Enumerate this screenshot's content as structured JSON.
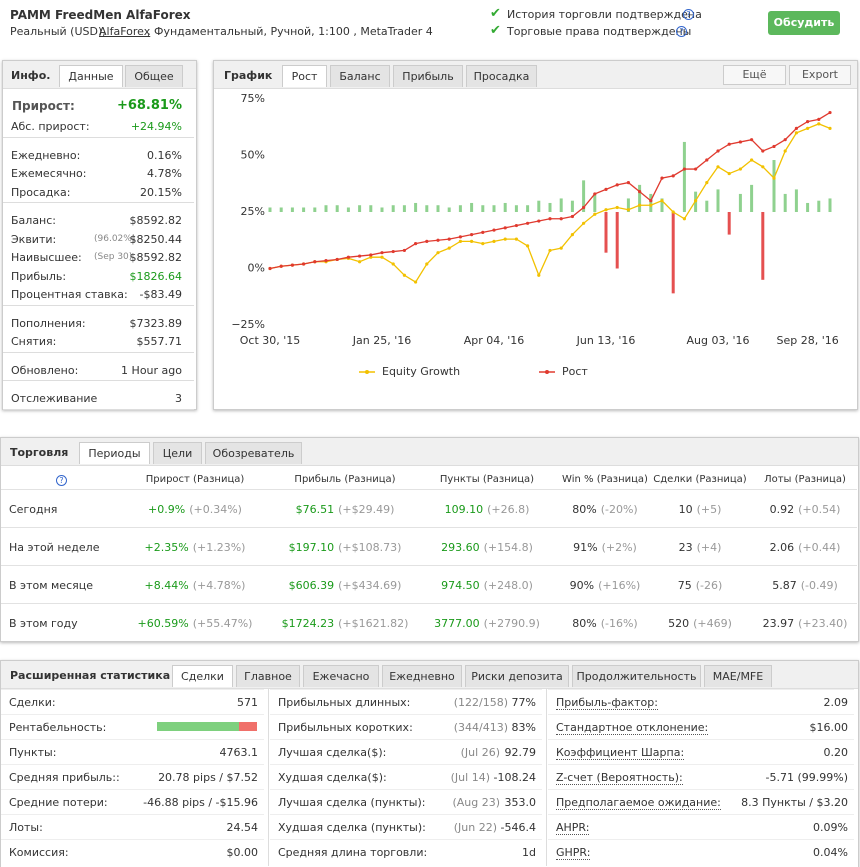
{
  "header": {
    "title": "PAMM FreedMen AlfaForex",
    "details_prefix": "Реальный (USD), ",
    "broker": "AlfaForex",
    "details_suffix": ", Фундаментальный, Ручной, 1:100 , MetaTrader 4",
    "verified": [
      "История торговли подтверждена",
      "Торговые права подтверждены"
    ],
    "button": "Обсудить"
  },
  "info": {
    "tabs": [
      "Инфо.",
      "Данные",
      "Общее"
    ],
    "gain_label": "Прирост:",
    "gain": "+68.81%",
    "groups": [
      [
        [
          "Абс. прирост:",
          "",
          "+24.94%"
        ]
      ],
      [
        [
          "Ежедневно:",
          "",
          "0.16%"
        ],
        [
          "Ежемесячно:",
          "",
          "4.78%"
        ],
        [
          "Просадка:",
          "",
          "20.15%"
        ]
      ],
      [
        [
          "Баланс:",
          "",
          "$8592.82"
        ],
        [
          "Эквити:",
          "(96.02%)",
          "$8250.44"
        ],
        [
          "Наивысшее:",
          "(Sep 30)",
          "$8592.82"
        ],
        [
          "Прибыль:",
          "",
          "$1826.64"
        ],
        [
          "Процентная ставка:",
          "",
          "-$83.49"
        ]
      ],
      [
        [
          "Пополнения:",
          "",
          "$7323.89"
        ],
        [
          "Снятия:",
          "",
          "$557.71"
        ]
      ],
      [
        [
          "Обновлено:",
          "",
          "1 Hour ago"
        ]
      ],
      [
        [
          "Отслеживание",
          "",
          "3"
        ]
      ]
    ]
  },
  "chart_panel": {
    "tabs": [
      "График",
      "Рост",
      "Баланс",
      "Прибыль",
      "Просадка"
    ],
    "buttons": [
      "Ещё",
      "Export"
    ]
  },
  "chart_data": {
    "type": "line",
    "ylim": [
      -25,
      75
    ],
    "yticks": [
      {
        "value": 75,
        "label": "75%"
      },
      {
        "value": 50,
        "label": "50%"
      },
      {
        "value": 25,
        "label": "25%"
      },
      {
        "value": 0,
        "label": "0%"
      },
      {
        "value": -25,
        "label": "−25%"
      }
    ],
    "categories": [
      "Oct 30, '15",
      null,
      null,
      null,
      null,
      null,
      null,
      null,
      null,
      null,
      "Jan 25, '16",
      null,
      null,
      null,
      null,
      null,
      null,
      null,
      null,
      null,
      "Apr 04, '16",
      null,
      null,
      null,
      null,
      null,
      null,
      null,
      null,
      null,
      "Jun 13, '16",
      null,
      null,
      null,
      null,
      null,
      null,
      null,
      null,
      null,
      "Aug 03, '16",
      null,
      null,
      null,
      null,
      null,
      null,
      null,
      "Sep 28, '16",
      null,
      null
    ],
    "series": [
      {
        "name": "Equity Growth",
        "color": "#f2c100",
        "values": [
          0,
          1,
          1.5,
          2,
          3,
          3,
          4,
          4.5,
          3,
          5,
          5,
          2,
          -3,
          -6,
          2,
          7,
          9,
          12,
          12,
          11,
          12,
          13,
          13,
          10,
          -3,
          8,
          9,
          15,
          20,
          24,
          26,
          27,
          26,
          28,
          28,
          30,
          25,
          22,
          30,
          38,
          45,
          42,
          44,
          48,
          45,
          40,
          52,
          60,
          62,
          64,
          62
        ]
      },
      {
        "name": "Рост",
        "color": "#e03a2f",
        "values": [
          0,
          1,
          1.5,
          2,
          3,
          3.5,
          4,
          5,
          5.5,
          6,
          7,
          7.5,
          8,
          11,
          12,
          12.5,
          13,
          14,
          15,
          16,
          17,
          18,
          19,
          20,
          21,
          22,
          22,
          23,
          27,
          33,
          35,
          37,
          38,
          34,
          30,
          40,
          41,
          44,
          44,
          48,
          52,
          55,
          56,
          57,
          52,
          54,
          57,
          62,
          65,
          66,
          69
        ]
      }
    ],
    "bar_base": 25,
    "bar_colors": [
      "#8fd18f",
      "#e55050"
    ],
    "bars": [
      2,
      2,
      2,
      2,
      2,
      3,
      3,
      2,
      3,
      3,
      2,
      3,
      3,
      4,
      3,
      3,
      2,
      3,
      4,
      3,
      3,
      4,
      3,
      3,
      5,
      4,
      6,
      5,
      14,
      8,
      -18,
      -25,
      6,
      12,
      8,
      6,
      -36,
      31,
      9,
      5,
      10,
      -10,
      8,
      12,
      -30,
      23,
      8,
      10,
      4,
      5,
      6
    ]
  },
  "trading": {
    "tabs": [
      "Торговля",
      "Периоды",
      "Цели",
      "Обозреватель"
    ],
    "help": "?",
    "columns": [
      "Прирост (Разница)",
      "Прибыль (Разница)",
      "Пункты (Разница)",
      "Win % (Разница)",
      "Сделки (Разница)",
      "Лоты (Разница)"
    ],
    "rows": [
      {
        "label": "Сегодня",
        "cells": [
          [
            "+0.9%",
            "(+0.34%)"
          ],
          [
            "$76.51",
            "(+$29.49)"
          ],
          [
            "109.10",
            "(+26.8)"
          ],
          [
            "80%",
            "(-20%)"
          ],
          [
            "10",
            "(+5)"
          ],
          [
            "0.92",
            "(+0.54)"
          ]
        ]
      },
      {
        "label": "На этой неделе",
        "cells": [
          [
            "+2.35%",
            "(+1.23%)"
          ],
          [
            "$197.10",
            "(+$108.73)"
          ],
          [
            "293.60",
            "(+154.8)"
          ],
          [
            "91%",
            "(+2%)"
          ],
          [
            "23",
            "(+4)"
          ],
          [
            "2.06",
            "(+0.44)"
          ]
        ]
      },
      {
        "label": "В этом месяце",
        "cells": [
          [
            "+8.44%",
            "(+4.78%)"
          ],
          [
            "$606.39",
            "(+$434.69)"
          ],
          [
            "974.50",
            "(+248.0)"
          ],
          [
            "90%",
            "(+16%)"
          ],
          [
            "75",
            "(-26)"
          ],
          [
            "5.87",
            "(-0.49)"
          ]
        ]
      },
      {
        "label": "В этом году",
        "cells": [
          [
            "+60.59%",
            "(+55.47%)"
          ],
          [
            "$1724.23",
            "(+$1621.82)"
          ],
          [
            "3777.00",
            "(+2790.9)"
          ],
          [
            "80%",
            "(-16%)"
          ],
          [
            "520",
            "(+469)"
          ],
          [
            "23.97",
            "(+23.40)"
          ]
        ]
      }
    ]
  },
  "stats": {
    "tabs": [
      "Расширенная статистика",
      "Сделки",
      "Главное",
      "Ежечасно",
      "Ежедневно",
      "Риски депозита",
      "Продолжительность",
      "MAE/MFE"
    ],
    "profitability": 82,
    "columns": [
      [
        [
          "Сделки:",
          "",
          "571"
        ],
        [
          "Рентабельность:",
          "",
          ""
        ],
        [
          "Пункты:",
          "",
          "4763.1"
        ],
        [
          "Средняя прибыль::",
          "",
          "20.78 pips / $7.52"
        ],
        [
          "Средние потери:",
          "",
          "-46.88 pips / -$15.96"
        ],
        [
          "Лоты:",
          "",
          "24.54"
        ],
        [
          "Комиссия:",
          "",
          "$0.00"
        ]
      ],
      [
        [
          "Прибыльных длинных:",
          "(122/158)",
          "77%"
        ],
        [
          "Прибыльных коротких:",
          "(344/413)",
          "83%"
        ],
        [
          "Лучшая сделка($):",
          "(Jul 26)",
          "92.79"
        ],
        [
          "Худшая сделка($):",
          "(Jul 14)",
          "-108.24"
        ],
        [
          "Лучшая сделка (пункты):",
          "(Aug 23)",
          "353.0"
        ],
        [
          "Худшая сделка (пункты):",
          "(Jun 22)",
          "-546.4"
        ],
        [
          "Средняя длина торговли:",
          "",
          "1d"
        ]
      ],
      [
        [
          "Прибыль-фактор:",
          "",
          "2.09"
        ],
        [
          "Стандартное отклонение:",
          "",
          "$16.00"
        ],
        [
          "Коэффициент Шарпа:",
          "",
          "0.20"
        ],
        [
          "Z-счет (Вероятность):",
          "",
          "-5.71 (99.99%)"
        ],
        [
          "Предполагаемое ожидание:",
          "",
          "8.3 Пункты / $3.20"
        ],
        [
          "AHPR:",
          "",
          "0.09%"
        ],
        [
          "GHPR:",
          "",
          "0.04%"
        ]
      ]
    ]
  }
}
